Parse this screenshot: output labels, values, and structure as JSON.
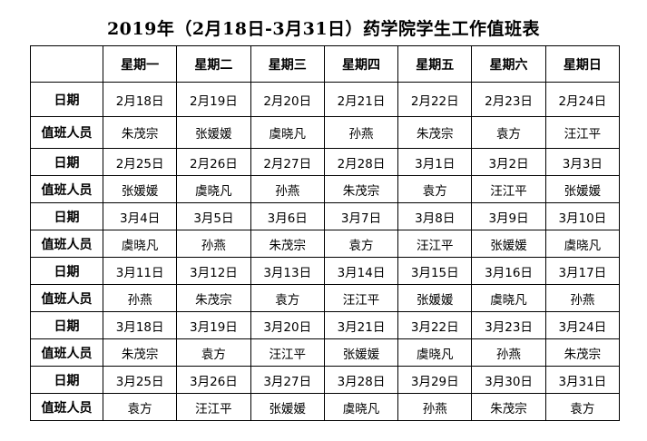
{
  "title": "2019年（2月18日-3月31日）药学院学生工作值班表",
  "header": [
    "",
    "星期一",
    "星期二",
    "星期三",
    "星期四",
    "星期五",
    "星期六",
    "星期日"
  ],
  "date_label": "日期",
  "staff_label": "值班人员",
  "weeks": [
    {
      "dates": [
        "2月18日",
        "2月19日",
        "2月20日",
        "2月21日",
        "2月22日",
        "2月23日",
        "2月24日"
      ],
      "staff": [
        "朱茂宗",
        "张媛媛",
        "虞晓凡",
        "孙燕",
        "朱茂宗",
        "袁方",
        "汪江平"
      ]
    },
    {
      "dates": [
        "2月25日",
        "2月26日",
        "2月27日",
        "2月28日",
        "3月1日",
        "3月2日",
        "3月3日"
      ],
      "staff": [
        "张媛媛",
        "虞晓凡",
        "孙燕",
        "朱茂宗",
        "袁方",
        "汪江平",
        "张媛媛"
      ]
    },
    {
      "dates": [
        "3月4日",
        "3月5日",
        "3月6日",
        "3月7日",
        "3月8日",
        "3月9日",
        "3月10日"
      ],
      "staff": [
        "虞晓凡",
        "孙燕",
        "朱茂宗",
        "袁方",
        "汪江平",
        "张媛媛",
        "虞晓凡"
      ]
    },
    {
      "dates": [
        "3月11日",
        "3月12日",
        "3月13日",
        "3月14日",
        "3月15日",
        "3月16日",
        "3月17日"
      ],
      "staff": [
        "孙燕",
        "朱茂宗",
        "袁方",
        "汪江平",
        "张媛媛",
        "虞晓凡",
        "孙燕"
      ]
    },
    {
      "dates": [
        "3月18日",
        "3月19日",
        "3月20日",
        "3月21日",
        "3月22日",
        "3月23日",
        "3月24日"
      ],
      "staff": [
        "朱茂宗",
        "袁方",
        "汪江平",
        "张媛媛",
        "虞晓凡",
        "孙燕",
        "朱茂宗"
      ]
    },
    {
      "dates": [
        "3月25日",
        "3月26日",
        "3月27日",
        "3月28日",
        "3月29日",
        "3月30日",
        "3月31日"
      ],
      "staff": [
        "袁方",
        "汪江平",
        "张媛媛",
        "虞晓凡",
        "孙燕",
        "朱茂宗",
        "袁方"
      ]
    }
  ]
}
